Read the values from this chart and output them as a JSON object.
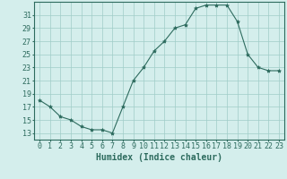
{
  "x": [
    0,
    1,
    2,
    3,
    4,
    5,
    6,
    7,
    8,
    9,
    10,
    11,
    12,
    13,
    14,
    15,
    16,
    17,
    18,
    19,
    20,
    21,
    22,
    23
  ],
  "y": [
    18,
    17,
    15.5,
    15,
    14,
    13.5,
    13.5,
    13,
    17,
    21,
    23,
    25.5,
    27,
    29,
    29.5,
    32,
    32.5,
    32.5,
    32.5,
    30,
    25,
    23,
    22.5,
    22.5
  ],
  "line_color": "#2d6b5e",
  "marker": "*",
  "marker_size": 3,
  "bg_color": "#d4eeec",
  "grid_color": "#a0ccc8",
  "xlabel": "Humidex (Indice chaleur)",
  "ylabel": "",
  "xlim": [
    -0.5,
    23.5
  ],
  "ylim": [
    12,
    33
  ],
  "yticks": [
    13,
    15,
    17,
    19,
    21,
    23,
    25,
    27,
    29,
    31
  ],
  "xticks": [
    0,
    1,
    2,
    3,
    4,
    5,
    6,
    7,
    8,
    9,
    10,
    11,
    12,
    13,
    14,
    15,
    16,
    17,
    18,
    19,
    20,
    21,
    22,
    23
  ],
  "tick_label_color": "#2d6b5e",
  "xlabel_color": "#2d6b5e",
  "xlabel_fontsize": 7,
  "tick_fontsize": 6,
  "spine_color": "#2d6b5e"
}
